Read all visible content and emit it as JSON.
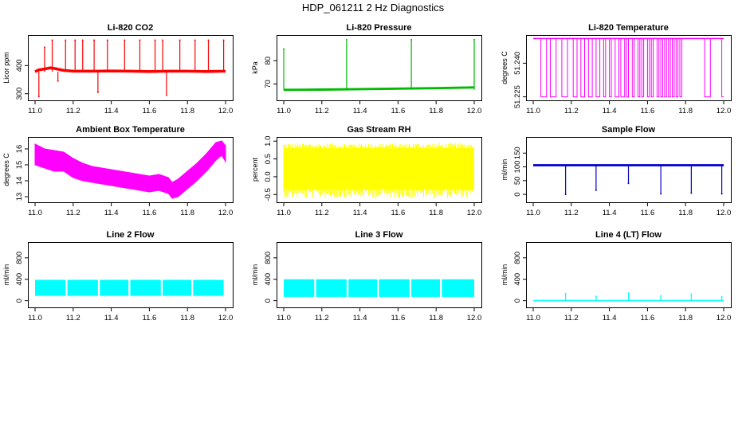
{
  "figure": {
    "title": "HDP_061211  2 Hz Diagnostics"
  },
  "chart_data": [
    {
      "id": "co2",
      "type": "line",
      "title": "Li-820 CO2",
      "ylabel": "Licor ppm",
      "color": "#ff0000",
      "xlim": [
        11.0,
        12.0
      ],
      "ylim": [
        285,
        500
      ],
      "xticks": [
        "11.0",
        "11.2",
        "11.4",
        "11.6",
        "11.8",
        "12.0"
      ],
      "yticks": [
        {
          "value": 300,
          "label": "300"
        },
        {
          "value": 400,
          "label": "400"
        }
      ],
      "series": [
        {
          "name": "CO2",
          "style": "trace",
          "band": [
            375,
            385
          ],
          "x": [
            11.0,
            11.02,
            11.05,
            11.08,
            11.1,
            11.15,
            11.2,
            11.3,
            11.4,
            11.5,
            11.6,
            11.7,
            11.8,
            11.9,
            12.0
          ],
          "y": [
            378,
            385,
            388,
            392,
            390,
            383,
            380,
            380,
            381,
            380,
            379,
            380,
            380,
            379,
            380
          ],
          "spikes": [
            {
              "x": 11.02,
              "y": 290
            },
            {
              "x": 11.05,
              "y": 465
            },
            {
              "x": 11.09,
              "y": 490
            },
            {
              "x": 11.12,
              "y": 345
            },
            {
              "x": 11.16,
              "y": 490
            },
            {
              "x": 11.21,
              "y": 490
            },
            {
              "x": 11.25,
              "y": 490
            },
            {
              "x": 11.31,
              "y": 490
            },
            {
              "x": 11.33,
              "y": 305
            },
            {
              "x": 11.38,
              "y": 490
            },
            {
              "x": 11.47,
              "y": 490
            },
            {
              "x": 11.55,
              "y": 490
            },
            {
              "x": 11.63,
              "y": 490
            },
            {
              "x": 11.67,
              "y": 490
            },
            {
              "x": 11.69,
              "y": 295
            },
            {
              "x": 11.76,
              "y": 490
            },
            {
              "x": 11.84,
              "y": 490
            },
            {
              "x": 11.91,
              "y": 490
            },
            {
              "x": 11.99,
              "y": 490
            }
          ]
        }
      ]
    },
    {
      "id": "pressure",
      "type": "line",
      "title": "Li-820 Pressure",
      "ylabel": "kPa",
      "color": "#00bb00",
      "xlim": [
        11.0,
        12.0
      ],
      "ylim": [
        64,
        90
      ],
      "xticks": [
        "11.0",
        "11.2",
        "11.4",
        "11.6",
        "11.8",
        "12.0"
      ],
      "yticks": [
        {
          "value": 70,
          "label": "70"
        },
        {
          "value": 80,
          "label": "80"
        }
      ],
      "series": [
        {
          "name": "Pressure",
          "style": "trace",
          "band": [
            67,
            68
          ],
          "x": [
            11.0,
            11.02,
            11.2,
            11.4,
            11.6,
            11.8,
            11.99,
            12.0
          ],
          "y": [
            67.5,
            67.5,
            67.6,
            67.8,
            68.0,
            68.2,
            68.5,
            68.5
          ],
          "spikes": [
            {
              "x": 11.0,
              "y": 85
            },
            {
              "x": 11.33,
              "y": 89
            },
            {
              "x": 11.67,
              "y": 89
            },
            {
              "x": 12.0,
              "y": 89
            }
          ]
        }
      ]
    },
    {
      "id": "licor-temp",
      "type": "line",
      "title": "Li-820 Temperature",
      "ylabel": "degrees C",
      "color": "#ff00ff",
      "xlim": [
        11.0,
        12.0
      ],
      "ylim": [
        51.2245,
        51.2515
      ],
      "xticks": [
        "11.0",
        "11.2",
        "11.4",
        "11.6",
        "11.8",
        "12.0"
      ],
      "yticks": [
        {
          "value": 51.225,
          "label": "51.225"
        },
        {
          "value": 51.24,
          "label": "51.240"
        }
      ],
      "series": [
        {
          "name": "Temperature",
          "style": "step",
          "low": 51.225,
          "high": 51.251,
          "toggles": [
            11.04,
            11.07,
            11.09,
            11.12,
            11.15,
            11.18,
            11.21,
            11.23,
            11.25,
            11.27,
            11.29,
            11.31,
            11.33,
            11.35,
            11.37,
            11.38,
            11.4,
            11.41,
            11.43,
            11.45,
            11.46,
            11.48,
            11.49,
            11.5,
            11.52,
            11.53,
            11.55,
            11.56,
            11.57,
            11.58,
            11.6,
            11.61,
            11.62,
            11.63,
            11.65,
            11.66,
            11.67,
            11.68,
            11.69,
            11.7,
            11.71,
            11.72,
            11.73,
            11.74,
            11.75,
            11.76,
            11.77,
            11.78,
            11.9,
            11.93,
            11.99
          ]
        }
      ]
    },
    {
      "id": "ambient-temp",
      "type": "line",
      "title": "Ambient Box Temperature",
      "ylabel": "degrees C",
      "color": "#ff00ff",
      "xlim": [
        11.0,
        12.0
      ],
      "ylim": [
        12.8,
        16.6
      ],
      "xticks": [
        "11.0",
        "11.2",
        "11.4",
        "11.6",
        "11.8",
        "12.0"
      ],
      "yticks": [
        {
          "value": 13,
          "label": "13"
        },
        {
          "value": 14,
          "label": "14"
        },
        {
          "value": 15,
          "label": "15"
        },
        {
          "value": 16,
          "label": "16"
        }
      ],
      "series": [
        {
          "name": "Ambient",
          "style": "band",
          "x": [
            11.0,
            11.05,
            11.1,
            11.15,
            11.2,
            11.25,
            11.3,
            11.35,
            11.4,
            11.45,
            11.5,
            11.55,
            11.6,
            11.65,
            11.7,
            11.72,
            11.75,
            11.8,
            11.85,
            11.9,
            11.95,
            11.98,
            12.0
          ],
          "ylow": [
            15.0,
            14.8,
            14.6,
            14.6,
            14.2,
            14.0,
            13.9,
            13.8,
            13.7,
            13.6,
            13.5,
            13.4,
            13.3,
            13.4,
            13.2,
            12.9,
            13.0,
            13.5,
            14.0,
            14.6,
            15.3,
            15.6,
            15.2
          ],
          "yhigh": [
            16.3,
            16.0,
            15.9,
            15.8,
            15.4,
            15.1,
            14.9,
            14.8,
            14.7,
            14.6,
            14.5,
            14.4,
            14.3,
            14.4,
            14.2,
            13.9,
            14.1,
            14.6,
            15.1,
            15.7,
            16.4,
            16.5,
            16.2
          ]
        }
      ]
    },
    {
      "id": "rh",
      "type": "line",
      "title": "Gas Stream RH",
      "ylabel": "percent",
      "color": "#ffff00",
      "xlim": [
        11.0,
        12.0
      ],
      "ylim": [
        -0.65,
        1.05
      ],
      "xticks": [
        "11.0",
        "11.2",
        "11.4",
        "11.6",
        "11.8",
        "12.0"
      ],
      "yticks": [
        {
          "value": -0.5,
          "label": "-0.5"
        },
        {
          "value": 0.0,
          "label": "0.0"
        },
        {
          "value": 0.5,
          "label": "0.5"
        },
        {
          "value": 1.0,
          "label": "1.0"
        }
      ],
      "series": [
        {
          "name": "RH",
          "style": "noise",
          "low": -0.6,
          "high": 0.95,
          "coreLow": -0.35,
          "coreHigh": 0.8,
          "x0": 11.0,
          "x1": 12.0
        }
      ]
    },
    {
      "id": "sample-flow",
      "type": "line",
      "title": "Sample Flow",
      "ylabel": "ml/min",
      "color": "#0000cc",
      "xlim": [
        11.0,
        12.0
      ],
      "ylim": [
        -20,
        200
      ],
      "xticks": [
        "11.0",
        "11.2",
        "11.4",
        "11.6",
        "11.8",
        "12.0"
      ],
      "yticks": [
        {
          "value": 0,
          "label": "0"
        },
        {
          "value": 50,
          "label": "50"
        },
        {
          "value": 100,
          "label": "100"
        },
        {
          "value": 150,
          "label": "150"
        }
      ],
      "series": [
        {
          "name": "Sample",
          "style": "trace",
          "band": [
            102,
            110
          ],
          "x": [
            11.0,
            11.2,
            11.4,
            11.6,
            11.8,
            12.0
          ],
          "y": [
            106,
            106,
            106,
            106,
            106,
            106
          ],
          "spikes": [
            {
              "x": 11.17,
              "y": 0
            },
            {
              "x": 11.33,
              "y": 15
            },
            {
              "x": 11.5,
              "y": 40
            },
            {
              "x": 11.67,
              "y": 2
            },
            {
              "x": 11.83,
              "y": 5
            },
            {
              "x": 11.99,
              "y": 2
            }
          ]
        }
      ]
    },
    {
      "id": "line2",
      "type": "line",
      "title": "Line 2 Flow",
      "ylabel": "ml/min",
      "color": "#00ffff",
      "xlim": [
        11.0,
        12.0
      ],
      "ylim": [
        -80,
        1050
      ],
      "xticks": [
        "11.0",
        "11.2",
        "11.4",
        "11.6",
        "11.8",
        "12.0"
      ],
      "yticks": [
        {
          "value": 0,
          "label": "0"
        },
        {
          "value": 400,
          "label": "400"
        },
        {
          "value": 800,
          "label": "800"
        }
      ],
      "series": [
        {
          "name": "Line 2",
          "style": "blocks",
          "low": 90,
          "high": 390,
          "segments": [
            [
              11.0,
              11.16
            ],
            [
              11.17,
              11.33
            ],
            [
              11.34,
              11.49
            ],
            [
              11.5,
              11.66
            ],
            [
              11.67,
              11.82
            ],
            [
              11.83,
              11.99
            ]
          ]
        }
      ]
    },
    {
      "id": "line3",
      "type": "line",
      "title": "Line 3 Flow",
      "ylabel": "ml/min",
      "color": "#00ffff",
      "xlim": [
        11.0,
        12.0
      ],
      "ylim": [
        -80,
        1050
      ],
      "xticks": [
        "11.0",
        "11.2",
        "11.4",
        "11.6",
        "11.8",
        "12.0"
      ],
      "yticks": [
        {
          "value": 0,
          "label": "0"
        },
        {
          "value": 400,
          "label": "400"
        },
        {
          "value": 800,
          "label": "800"
        }
      ],
      "series": [
        {
          "name": "Line 3",
          "style": "blocks",
          "low": 70,
          "high": 400,
          "segments": [
            [
              11.0,
              11.16
            ],
            [
              11.17,
              11.33
            ],
            [
              11.34,
              11.49
            ],
            [
              11.5,
              11.66
            ],
            [
              11.67,
              11.82
            ],
            [
              11.83,
              12.0
            ]
          ]
        }
      ]
    },
    {
      "id": "line4",
      "type": "line",
      "title": "Line 4 (LT) Flow",
      "ylabel": "ml/min",
      "color": "#00ffff",
      "xlim": [
        11.0,
        12.0
      ],
      "ylim": [
        -80,
        1050
      ],
      "xticks": [
        "11.0",
        "11.2",
        "11.4",
        "11.6",
        "11.8",
        "12.0"
      ],
      "yticks": [
        {
          "value": 0,
          "label": "0"
        },
        {
          "value": 400,
          "label": "400"
        },
        {
          "value": 800,
          "label": "800"
        }
      ],
      "series": [
        {
          "name": "Line 4",
          "style": "trace",
          "band": [
            0,
            4
          ],
          "x": [
            11.0,
            11.2,
            11.4,
            11.6,
            11.8,
            12.0
          ],
          "y": [
            2,
            2,
            2,
            2,
            2,
            2
          ],
          "spikes": [
            {
              "x": 11.17,
              "y": 130
            },
            {
              "x": 11.33,
              "y": 80
            },
            {
              "x": 11.5,
              "y": 140
            },
            {
              "x": 11.67,
              "y": 90
            },
            {
              "x": 11.83,
              "y": 120
            },
            {
              "x": 11.99,
              "y": 70
            }
          ]
        }
      ]
    }
  ]
}
